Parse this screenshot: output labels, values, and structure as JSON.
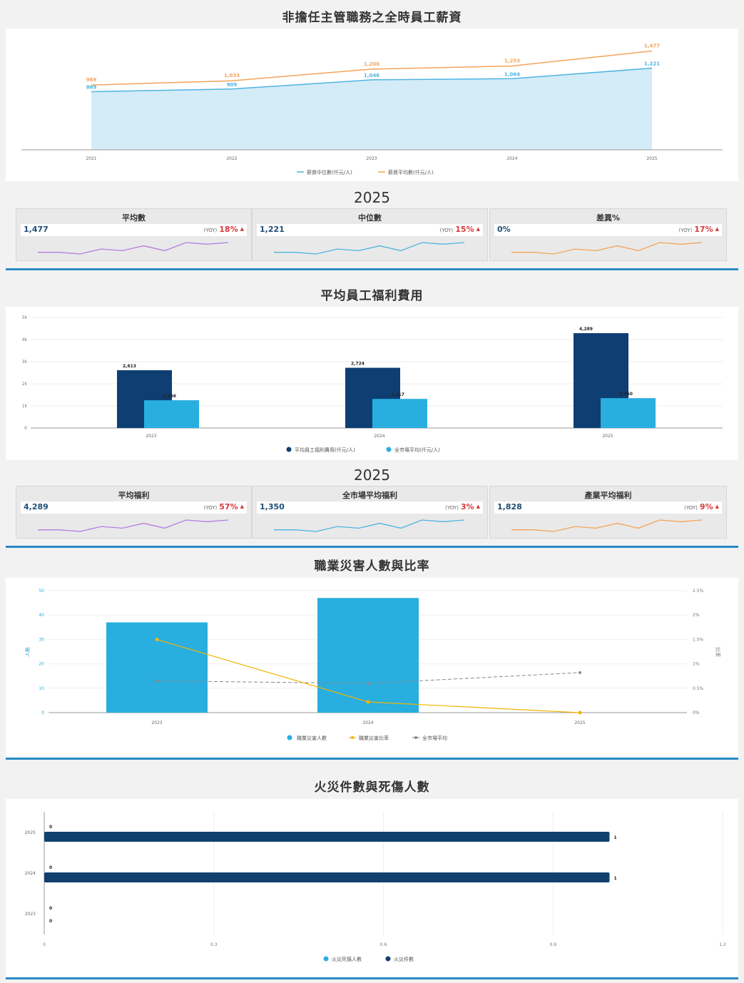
{
  "sections": {
    "salary_title": "非擔任主管職務之全時員工薪資",
    "salary_year": "2025",
    "benefit_title": "平均員工福利費用",
    "benefit_year": "2025",
    "injury_title": "職業災害人數與比率",
    "fire_title": "火災件數與死傷人數"
  },
  "kpi_salary": [
    {
      "title": "平均數",
      "value": "1,477",
      "yoy_label": "(YOY)",
      "yoy": "18%",
      "color": "#b57ee0",
      "spark": [
        3,
        3,
        2,
        5,
        4,
        7,
        4,
        9,
        8,
        9
      ]
    },
    {
      "title": "中位數",
      "value": "1,221",
      "yoy_label": "(YOY)",
      "yoy": "15%",
      "color": "#4fb4e0",
      "spark": [
        3,
        3,
        2,
        5,
        4,
        7,
        4,
        9,
        8,
        9
      ]
    },
    {
      "title": "差異%",
      "value": "0%",
      "yoy_label": "(YOY)",
      "yoy": "17%",
      "color": "#f5a35a",
      "spark": [
        3,
        3,
        2,
        5,
        4,
        7,
        4,
        9,
        8,
        9
      ]
    }
  ],
  "kpi_benefit": [
    {
      "title": "平均福利",
      "value": "4,289",
      "yoy_label": "(YOY)",
      "yoy": "57%",
      "color": "#b57ee0",
      "spark": [
        3,
        3,
        2,
        5,
        4,
        7,
        4,
        9,
        8,
        9
      ]
    },
    {
      "title": "全市場平均福利",
      "value": "1,350",
      "yoy_label": "(YOY)",
      "yoy": "3%",
      "color": "#4fb4e0",
      "spark": [
        3,
        3,
        2,
        5,
        4,
        7,
        4,
        9,
        8,
        9
      ]
    },
    {
      "title": "產業平均福利",
      "value": "1,828",
      "yoy_label": "(YOY)",
      "yoy": "9%",
      "color": "#f5a35a",
      "spark": [
        3,
        3,
        2,
        5,
        4,
        7,
        4,
        9,
        8,
        9
      ]
    }
  ],
  "chart_data": [
    {
      "type": "area",
      "x": [
        "2021",
        "2022",
        "2023",
        "2024",
        "2025"
      ],
      "series": [
        {
          "name": "薪資中位數(仟元/人)",
          "values": [
            869,
            909,
            1046,
            1064,
            1221
          ],
          "labels": [
            "869",
            "909",
            "1,046",
            "1,064",
            "1,221"
          ],
          "color": "#4fb4e0",
          "fill": "#d4ecf8"
        },
        {
          "name": "薪資平均數(仟元/人)",
          "values": [
            969,
            1033,
            1206,
            1253,
            1477
          ],
          "labels": [
            "969",
            "1,033",
            "1,206",
            "1,253",
            "1,477"
          ],
          "color": "#f5a35a"
        }
      ],
      "ylim": [
        0,
        1600
      ]
    },
    {
      "type": "bar",
      "categories": [
        "2023",
        "2024",
        "2025"
      ],
      "series": [
        {
          "name": "平均員工福利費用(仟元/人)",
          "values": [
            2613,
            2724,
            4289
          ],
          "labels": [
            "2,613",
            "2,724",
            "4,289"
          ],
          "color": "#0e3e72"
        },
        {
          "name": "全市場平均(仟元/人)",
          "values": [
            1256,
            1317,
            1350
          ],
          "labels": [
            "1,256",
            "1,317",
            "1,350"
          ],
          "color": "#29aee0"
        }
      ],
      "yticks": [
        "0",
        "1k",
        "2k",
        "3k",
        "4k",
        "5k"
      ],
      "ylim": [
        0,
        5000
      ]
    },
    {
      "type": "bar",
      "categories": [
        "2023",
        "2024",
        "2025"
      ],
      "ylabel": "人數",
      "y2label": "比率",
      "yticks": [
        "0",
        "10",
        "20",
        "30",
        "40",
        "50"
      ],
      "y2ticks": [
        "0%",
        "0.5%",
        "1%",
        "1.5%",
        "2%",
        "2.5%"
      ],
      "ylim": [
        0,
        50
      ],
      "y2lim": [
        0,
        2.5
      ],
      "series": [
        {
          "name": "職業災害人數",
          "values": [
            37,
            47,
            0
          ],
          "color": "#29aee0",
          "axis": "left"
        },
        {
          "name": "職業災害比率",
          "values": [
            1.5,
            0.22,
            0
          ],
          "color": "#f5b400",
          "axis": "right"
        },
        {
          "name": "全市場平均",
          "values": [
            0.65,
            0.6,
            0.82
          ],
          "color": "#888888",
          "axis": "right",
          "dashed": true
        }
      ]
    },
    {
      "type": "bar",
      "orientation": "horizontal",
      "categories": [
        "2025",
        "2024",
        "2023"
      ],
      "xticks": [
        "0",
        "0.3",
        "0.6",
        "0.9",
        "1.2"
      ],
      "xlim": [
        0,
        1.2
      ],
      "series": [
        {
          "name": "火災死傷人數",
          "values": [
            0,
            0,
            0
          ],
          "labels": [
            "0",
            "0",
            "0"
          ],
          "color": "#29aee0"
        },
        {
          "name": "火災件數",
          "values": [
            1,
            1,
            0
          ],
          "labels": [
            "1",
            "1",
            "0"
          ],
          "color": "#12406e"
        }
      ]
    }
  ]
}
